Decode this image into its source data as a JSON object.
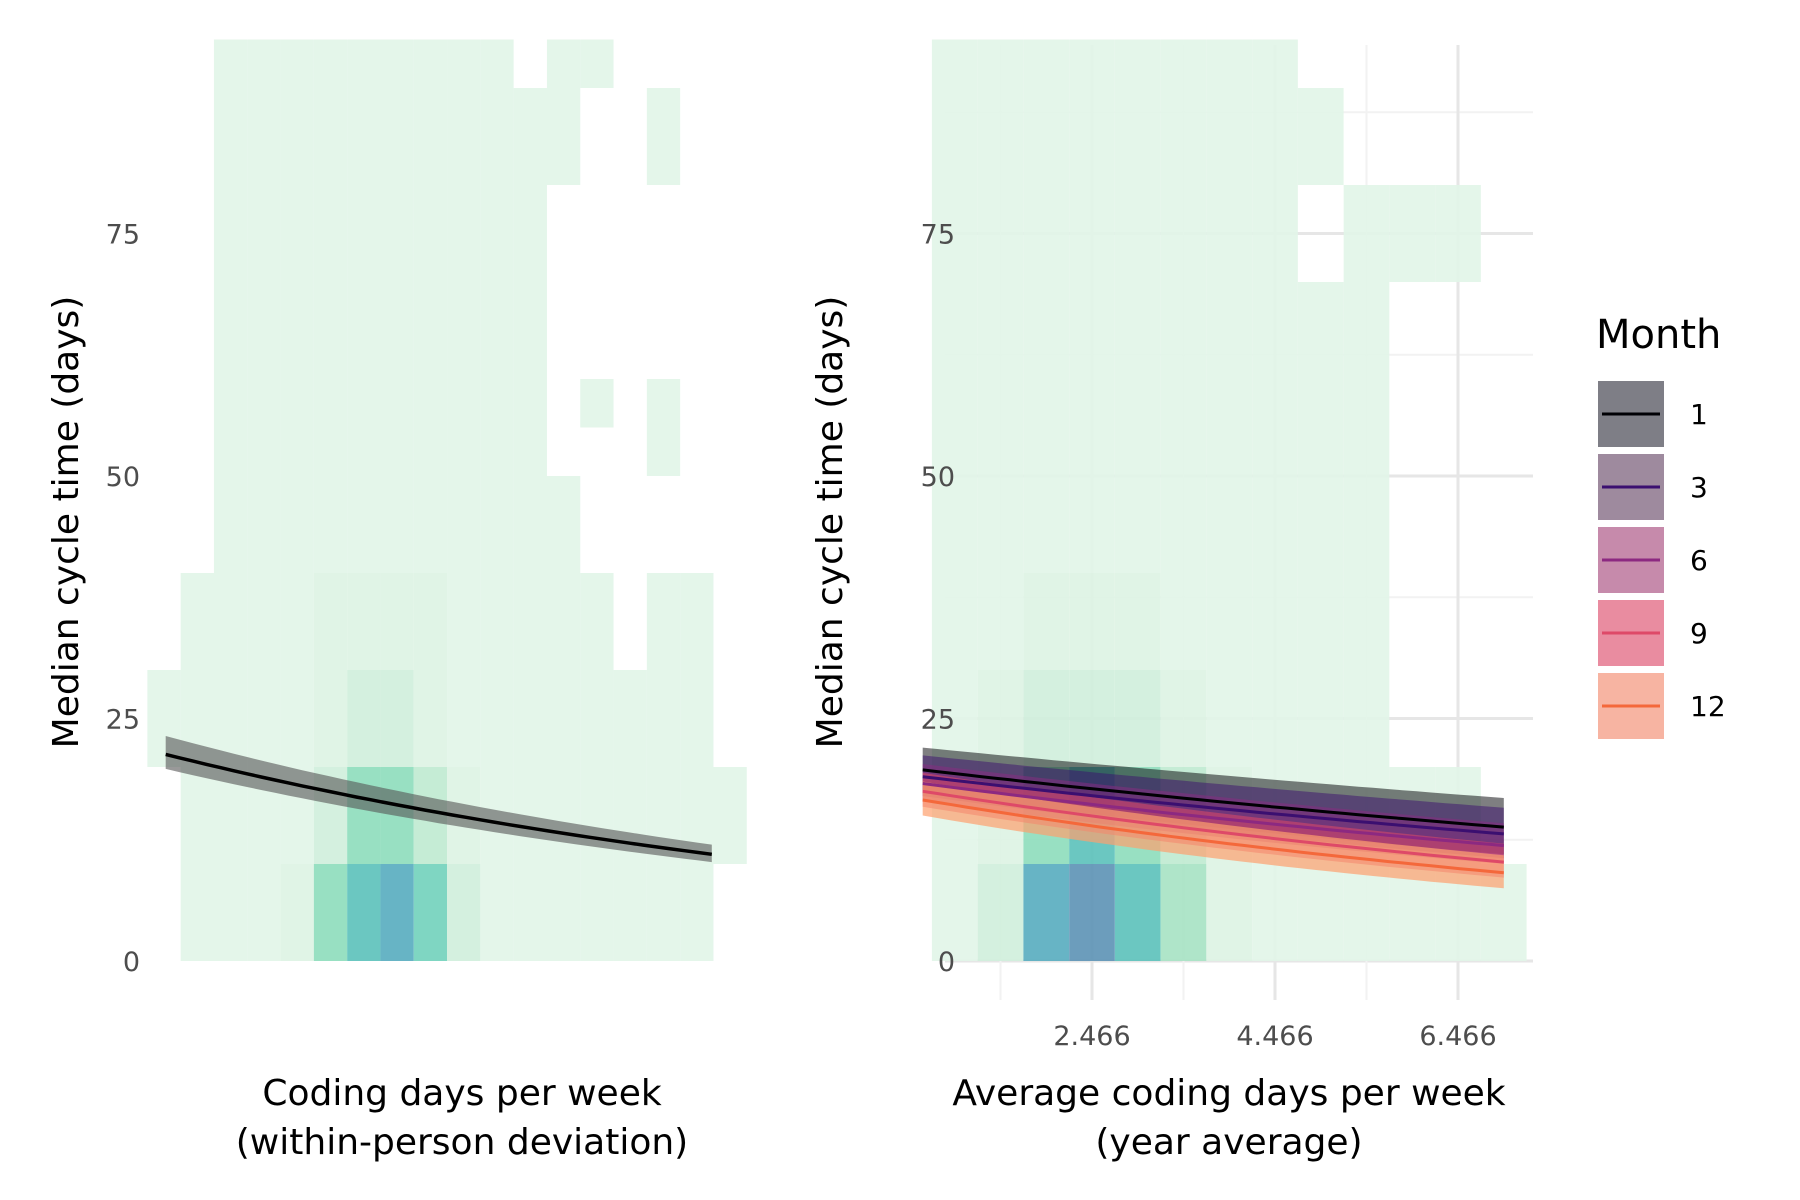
{
  "chart_data": [
    {
      "type": "heatmap",
      "panel": "left",
      "ylabel": "Median cycle time (days)",
      "xlabel_lines": [
        "Coding days per week",
        "(within-person deviation)"
      ],
      "ylim": [
        -5,
        95
      ],
      "y_ticks": [
        0,
        25,
        50,
        75
      ],
      "x_ticks": [],
      "grid": false,
      "heat_columns": [
        [
          -1,
          [
            [
              20,
              30,
              1
            ]
          ]
        ],
        [
          0,
          [
            [
              0,
              40,
              1
            ]
          ]
        ],
        [
          1,
          [
            [
              0,
              95,
              1
            ]
          ]
        ],
        [
          2,
          [
            [
              0,
              10,
              1
            ],
            [
              10,
              95,
              1
            ]
          ]
        ],
        [
          3,
          [
            [
              0,
              10,
              2
            ],
            [
              10,
              20,
              1
            ],
            [
              20,
              30,
              1
            ],
            [
              30,
              95,
              1
            ]
          ]
        ],
        [
          4,
          [
            [
              0,
              10,
              6
            ],
            [
              10,
              20,
              3
            ],
            [
              20,
              30,
              2
            ],
            [
              30,
              40,
              2
            ],
            [
              40,
              95,
              1
            ]
          ]
        ],
        [
          5,
          [
            [
              0,
              10,
              8
            ],
            [
              10,
              20,
              6
            ],
            [
              20,
              30,
              3
            ],
            [
              30,
              40,
              2
            ],
            [
              40,
              95,
              1
            ]
          ]
        ],
        [
          6,
          [
            [
              0,
              10,
              9
            ],
            [
              10,
              20,
              6
            ],
            [
              20,
              30,
              3
            ],
            [
              30,
              40,
              2
            ],
            [
              40,
              95,
              1
            ]
          ]
        ],
        [
          7,
          [
            [
              0,
              10,
              7
            ],
            [
              10,
              20,
              4
            ],
            [
              20,
              30,
              2
            ],
            [
              30,
              40,
              2
            ],
            [
              40,
              95,
              1
            ]
          ]
        ],
        [
          8,
          [
            [
              0,
              10,
              3
            ],
            [
              10,
              20,
              2
            ],
            [
              20,
              30,
              1
            ],
            [
              30,
              95,
              1
            ]
          ]
        ],
        [
          9,
          [
            [
              0,
              10,
              1
            ],
            [
              10,
              20,
              1
            ],
            [
              20,
              30,
              1
            ],
            [
              30,
              95,
              1
            ]
          ]
        ],
        [
          10,
          [
            [
              0,
              20,
              1
            ],
            [
              20,
              90,
              1
            ]
          ]
        ],
        [
          11,
          [
            [
              0,
              20,
              1
            ],
            [
              20,
              50,
              1
            ],
            [
              80,
              95,
              1
            ]
          ]
        ],
        [
          12,
          [
            [
              0,
              40,
              1
            ],
            [
              55,
              60,
              1
            ],
            [
              90,
              95,
              1
            ]
          ]
        ],
        [
          13,
          [
            [
              0,
              30,
              1
            ]
          ]
        ],
        [
          14,
          [
            [
              0,
              40,
              1
            ],
            [
              50,
              60,
              1
            ],
            [
              80,
              90,
              1
            ]
          ]
        ],
        [
          15,
          [
            [
              0,
              40,
              1
            ]
          ]
        ],
        [
          16,
          [
            [
              10,
              20,
              1
            ]
          ]
        ]
      ],
      "fit": {
        "x": [
          -0.95,
          15.45
        ],
        "line": [
          21.3,
          11.0
        ],
        "lower": [
          19.8,
          10.2
        ],
        "upper": [
          23.2,
          12.0
        ],
        "line_color": "#000000",
        "band_color": "#555555"
      }
    },
    {
      "type": "heatmap",
      "panel": "right",
      "ylabel": "Median cycle time (days)",
      "xlabel_lines": [
        "Average coding days per week",
        "(year average)"
      ],
      "ylim": [
        -5,
        95
      ],
      "y_ticks": [
        0,
        25,
        50,
        75
      ],
      "x_ticks": [
        2.466,
        4.466,
        6.466
      ],
      "x_tick_labels": [
        "2.466",
        "4.466",
        "6.466"
      ],
      "xlim": [
        0.516,
        7.266
      ],
      "grid": true,
      "heat_columns": [
        [
          0.966,
          [
            [
              0,
              10,
              1
            ],
            [
              10,
              30,
              1
            ],
            [
              30,
              95,
              1
            ]
          ]
        ],
        [
          1.466,
          [
            [
              0,
              10,
              3
            ],
            [
              10,
              20,
              2
            ],
            [
              20,
              30,
              2
            ],
            [
              30,
              95,
              1
            ]
          ]
        ],
        [
          1.966,
          [
            [
              0,
              10,
              9
            ],
            [
              10,
              20,
              6
            ],
            [
              20,
              30,
              3
            ],
            [
              30,
              40,
              2
            ],
            [
              40,
              95,
              1
            ]
          ]
        ],
        [
          2.466,
          [
            [
              0,
              10,
              10
            ],
            [
              10,
              20,
              8
            ],
            [
              20,
              30,
              3
            ],
            [
              30,
              40,
              2
            ],
            [
              40,
              95,
              1
            ]
          ]
        ],
        [
          2.966,
          [
            [
              0,
              10,
              8
            ],
            [
              10,
              20,
              6
            ],
            [
              20,
              30,
              3
            ],
            [
              30,
              40,
              2
            ],
            [
              40,
              95,
              1
            ]
          ]
        ],
        [
          3.466,
          [
            [
              0,
              10,
              5
            ],
            [
              10,
              20,
              4
            ],
            [
              20,
              30,
              2
            ],
            [
              30,
              95,
              1
            ]
          ]
        ],
        [
          3.966,
          [
            [
              0,
              10,
              2
            ],
            [
              10,
              20,
              2
            ],
            [
              20,
              30,
              1
            ],
            [
              30,
              95,
              1
            ]
          ]
        ],
        [
          4.466,
          [
            [
              0,
              10,
              1
            ],
            [
              10,
              95,
              1
            ]
          ]
        ],
        [
          4.966,
          [
            [
              0,
              70,
              1
            ],
            [
              80,
              90,
              1
            ]
          ]
        ],
        [
          5.466,
          [
            [
              0,
              70,
              1
            ],
            [
              70,
              80,
              1
            ]
          ]
        ],
        [
          5.966,
          [
            [
              0,
              20,
              1
            ],
            [
              70,
              80,
              1
            ]
          ]
        ],
        [
          6.466,
          [
            [
              0,
              20,
              1
            ],
            [
              70,
              80,
              1
            ]
          ]
        ],
        [
          6.966,
          [
            [
              0,
              10,
              1
            ]
          ]
        ]
      ],
      "legend": {
        "title": "Month",
        "position": "right",
        "entries": [
          "1",
          "3",
          "6",
          "9",
          "12"
        ]
      },
      "series": [
        {
          "name": "1",
          "x": [
            0.616,
            6.966
          ],
          "line": [
            19.7,
            13.8
          ],
          "lower": [
            17.3,
            11.0
          ],
          "upper": [
            22.0,
            16.8
          ],
          "color": "#000004",
          "band_alpha": 0.5
        },
        {
          "name": "3",
          "x": [
            0.616,
            6.966
          ],
          "line": [
            19.0,
            13.1
          ],
          "lower": [
            17.0,
            10.6
          ],
          "upper": [
            21.2,
            15.8
          ],
          "color": "#3b0f70",
          "band_alpha": 0.5
        },
        {
          "name": "6",
          "x": [
            0.616,
            6.966
          ],
          "line": [
            18.3,
            11.9
          ],
          "lower": [
            16.5,
            10.0
          ],
          "upper": [
            20.3,
            14.2
          ],
          "color": "#8c2981",
          "band_alpha": 0.5
        },
        {
          "name": "9",
          "x": [
            0.616,
            6.966
          ],
          "line": [
            17.5,
            10.2
          ],
          "lower": [
            15.9,
            8.6
          ],
          "upper": [
            19.4,
            12.1
          ],
          "color": "#de4968",
          "band_alpha": 0.55
        },
        {
          "name": "12",
          "x": [
            0.616,
            6.966
          ],
          "line": [
            16.6,
            9.1
          ],
          "lower": [
            15.0,
            7.5
          ],
          "upper": [
            18.5,
            10.9
          ],
          "color": "#fe9f6d",
          "band_alpha": 0.7
        }
      ],
      "legend_line_colors": [
        "#000004",
        "#3b0f70",
        "#8c2981",
        "#de4968",
        "#f4683b"
      ],
      "legend_band_colors": [
        "#7e7e86",
        "#9e8a9e",
        "#c68aab",
        "#e98ca0",
        "#f7b4a2"
      ]
    }
  ],
  "heat_palette": [
    "#e2f5e8",
    "#ddf3e4",
    "#d0efdc",
    "#c0ead1",
    "#a8e3c4",
    "#8fddbd",
    "#74d2bd",
    "#5ec2bc",
    "#5aaec0",
    "#6095b6",
    "#6092b8"
  ]
}
